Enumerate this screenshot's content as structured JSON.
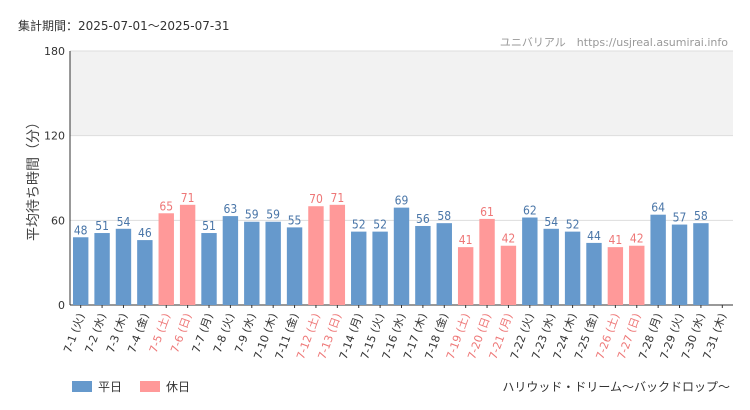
{
  "header": {
    "period_label": "集計期間：2025-07-01～2025-07-31",
    "source": "ユニバリアル　https://usjreal.asumirai.info"
  },
  "footer": {
    "attraction": "ハリウッド・ドリーム～バックドロップ～"
  },
  "colors": {
    "weekday": "#6699cc",
    "holiday": "#ff9999",
    "weekday_text": "#4a76a8",
    "holiday_text": "#ee7777",
    "band": "#f2f2f2",
    "grid": "#dddddd"
  },
  "chart_data": {
    "type": "bar",
    "ylabel": "平均待ち時間（分）",
    "ylim": [
      0,
      180
    ],
    "yticks": [
      0,
      60,
      120,
      180
    ],
    "legend": [
      {
        "name": "平日",
        "key": "weekday"
      },
      {
        "name": "休日",
        "key": "holiday"
      }
    ],
    "categories": [
      "7-1 (火)",
      "7-2 (水)",
      "7-3 (木)",
      "7-4 (金)",
      "7-5 (土)",
      "7-6 (日)",
      "7-7 (月)",
      "7-8 (火)",
      "7-9 (水)",
      "7-10 (木)",
      "7-11 (金)",
      "7-12 (土)",
      "7-13 (日)",
      "7-14 (月)",
      "7-15 (火)",
      "7-16 (水)",
      "7-17 (木)",
      "7-18 (金)",
      "7-19 (土)",
      "7-20 (日)",
      "7-21 (月)",
      "7-22 (火)",
      "7-23 (水)",
      "7-24 (木)",
      "7-25 (金)",
      "7-26 (土)",
      "7-27 (日)",
      "7-28 (月)",
      "7-29 (火)",
      "7-30 (水)",
      "7-31 (木)"
    ],
    "values": [
      48,
      51,
      54,
      46,
      65,
      71,
      51,
      63,
      59,
      59,
      55,
      70,
      71,
      52,
      52,
      69,
      56,
      58,
      41,
      61,
      42,
      62,
      54,
      52,
      44,
      41,
      42,
      64,
      57,
      58,
      null
    ],
    "day_type": [
      "weekday",
      "weekday",
      "weekday",
      "weekday",
      "holiday",
      "holiday",
      "weekday",
      "weekday",
      "weekday",
      "weekday",
      "weekday",
      "holiday",
      "holiday",
      "weekday",
      "weekday",
      "weekday",
      "weekday",
      "weekday",
      "holiday",
      "holiday",
      "holiday",
      "weekday",
      "weekday",
      "weekday",
      "weekday",
      "holiday",
      "holiday",
      "weekday",
      "weekday",
      "weekday",
      "weekday"
    ]
  }
}
